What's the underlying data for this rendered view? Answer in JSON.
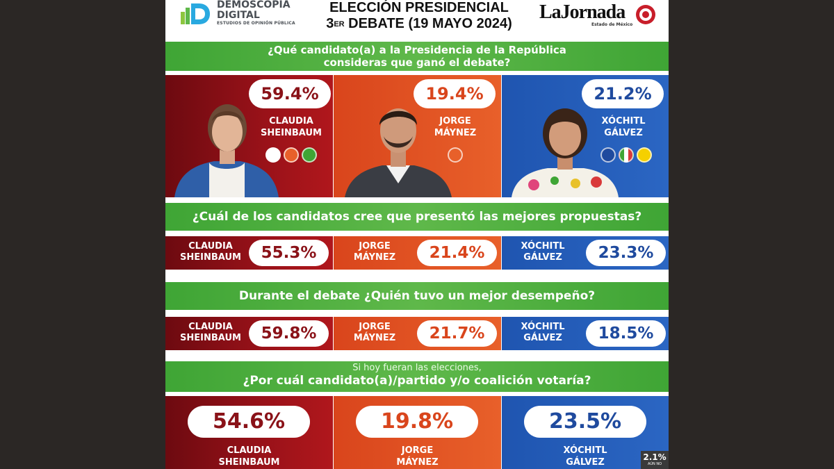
{
  "header": {
    "brand_line1": "DEMOSCOPIA",
    "brand_line2": "DIGITAL",
    "brand_sub": "ESTUDIOS DE OPINIÓN PÚBLICA",
    "title_line1": "ELECCIÓN PRESIDENCIAL",
    "title_num": "3",
    "title_sup": "ER",
    "title_line2_rest": " DEBATE (19 MAYO 2024)",
    "publisher": "LaJornada",
    "publisher_sub": "Estado de México"
  },
  "colors": {
    "red": "#9a1219",
    "orange": "#e8602a",
    "blue": "#2b66c3",
    "green": "#4cae3c"
  },
  "q1": {
    "line1": "¿Qué candidato(a) a la Presidencia de la República",
    "line2": "consideras que ganó el debate?",
    "candidates": [
      {
        "pct": "59.4%",
        "first": "CLAUDIA",
        "last": "SHEINBAUM",
        "parties": [
          "morena",
          "PT",
          "verde"
        ]
      },
      {
        "pct": "19.4%",
        "first": "JORGE",
        "last": "MÁYNEZ",
        "parties": [
          "MC"
        ]
      },
      {
        "pct": "21.2%",
        "first": "XÓCHITL",
        "last": "GÁLVEZ",
        "parties": [
          "PAN",
          "PRI",
          "PRD"
        ]
      }
    ]
  },
  "q2": {
    "question": "¿Cuál de los candidatos cree que presentó las mejores propuestas?",
    "candidates": [
      {
        "first": "CLAUDIA",
        "last": "SHEINBAUM",
        "pct": "55.3%"
      },
      {
        "first": "JORGE",
        "last": "MÁYNEZ",
        "pct": "21.4%"
      },
      {
        "first": "XÓCHITL",
        "last": "GÁLVEZ",
        "pct": "23.3%"
      }
    ]
  },
  "q3": {
    "question": "Durante el debate ¿Quién tuvo un mejor desempeño?",
    "candidates": [
      {
        "first": "CLAUDIA",
        "last": "SHEINBAUM",
        "pct": "59.8%"
      },
      {
        "first": "JORGE",
        "last": "MÁYNEZ",
        "pct": "21.7%"
      },
      {
        "first": "XÓCHITL",
        "last": "GÁLVEZ",
        "pct": "18.5%"
      }
    ]
  },
  "q4": {
    "pre": "Si hoy fueran las elecciones,",
    "question": "¿Por cuál candidato(a)/partido y/o coalición votaría?",
    "candidates": [
      {
        "pct": "54.6%",
        "first": "CLAUDIA",
        "last": "SHEINBAUM"
      },
      {
        "pct": "19.8%",
        "first": "JORGE",
        "last": "MÁYNEZ"
      },
      {
        "pct": "23.5%",
        "first": "XÓCHITL",
        "last": "GÁLVEZ"
      }
    ],
    "other_pct": "2.1%",
    "other_label": "AÚN NO"
  }
}
